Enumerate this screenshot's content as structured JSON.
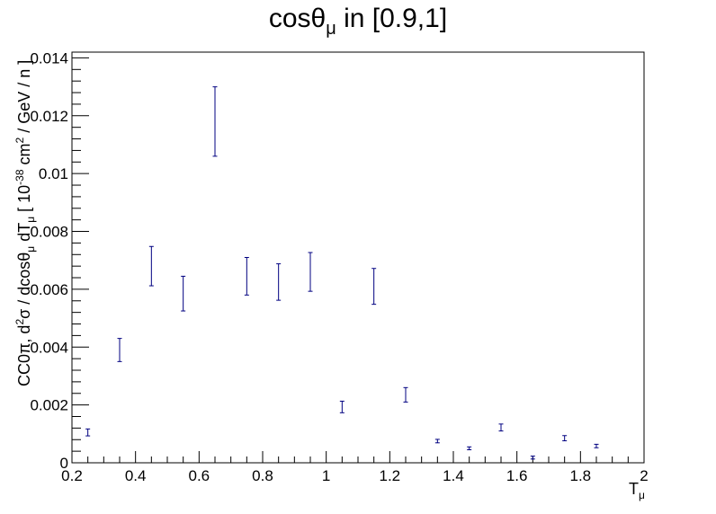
{
  "chart_data": {
    "type": "scatter",
    "title_main": "cosθ",
    "title_sub": "μ",
    "title_rest": " in [0.9,1]",
    "xlabel_main": "T",
    "xlabel_sub": "μ",
    "ylabel_parts": {
      "a": "CC0π, d",
      "b": "2",
      "c": "σ / dcosθ",
      "d": "μ",
      "e": " dT",
      "f": "μ",
      "g": " [ 10",
      "h": "-38",
      "i": " cm",
      "j": "2",
      "k": " / GeV / n ]"
    },
    "xlim": [
      0.2,
      2.0
    ],
    "ylim": [
      0,
      0.0142
    ],
    "x_ticks": [
      0.2,
      0.4,
      0.6,
      0.8,
      1.0,
      1.2,
      1.4,
      1.6,
      1.8,
      2.0
    ],
    "x_tick_labels": [
      "0.2",
      "0.4",
      "0.6",
      "0.8",
      "1",
      "1.2",
      "1.4",
      "1.6",
      "1.8",
      "2"
    ],
    "y_ticks": [
      0,
      0.002,
      0.004,
      0.006,
      0.008,
      0.01,
      0.012,
      0.014
    ],
    "y_tick_labels": [
      "0",
      "0.002",
      "0.004",
      "0.006",
      "0.008",
      "0.01",
      "0.012",
      "0.014"
    ],
    "series": [
      {
        "color": "#000080",
        "points": [
          {
            "x": 0.25,
            "y": 0.00105,
            "err": 0.00012
          },
          {
            "x": 0.35,
            "y": 0.0039,
            "err": 0.0004
          },
          {
            "x": 0.45,
            "y": 0.0068,
            "err": 0.00068
          },
          {
            "x": 0.55,
            "y": 0.00585,
            "err": 0.0006
          },
          {
            "x": 0.65,
            "y": 0.0118,
            "err": 0.0012
          },
          {
            "x": 0.75,
            "y": 0.00645,
            "err": 0.00065
          },
          {
            "x": 0.85,
            "y": 0.00625,
            "err": 0.00063
          },
          {
            "x": 0.95,
            "y": 0.0066,
            "err": 0.00067
          },
          {
            "x": 1.05,
            "y": 0.00193,
            "err": 0.0002
          },
          {
            "x": 1.15,
            "y": 0.0061,
            "err": 0.00062
          },
          {
            "x": 1.25,
            "y": 0.00235,
            "err": 0.00025
          },
          {
            "x": 1.35,
            "y": 0.00075,
            "err": 6e-05
          },
          {
            "x": 1.45,
            "y": 0.0005,
            "err": 5e-05
          },
          {
            "x": 1.55,
            "y": 0.00122,
            "err": 0.00012
          },
          {
            "x": 1.65,
            "y": 0.00018,
            "err": 5e-05
          },
          {
            "x": 1.75,
            "y": 0.00085,
            "err": 9e-05
          },
          {
            "x": 1.85,
            "y": 0.00058,
            "err": 6e-05
          }
        ]
      }
    ],
    "grid": false
  }
}
